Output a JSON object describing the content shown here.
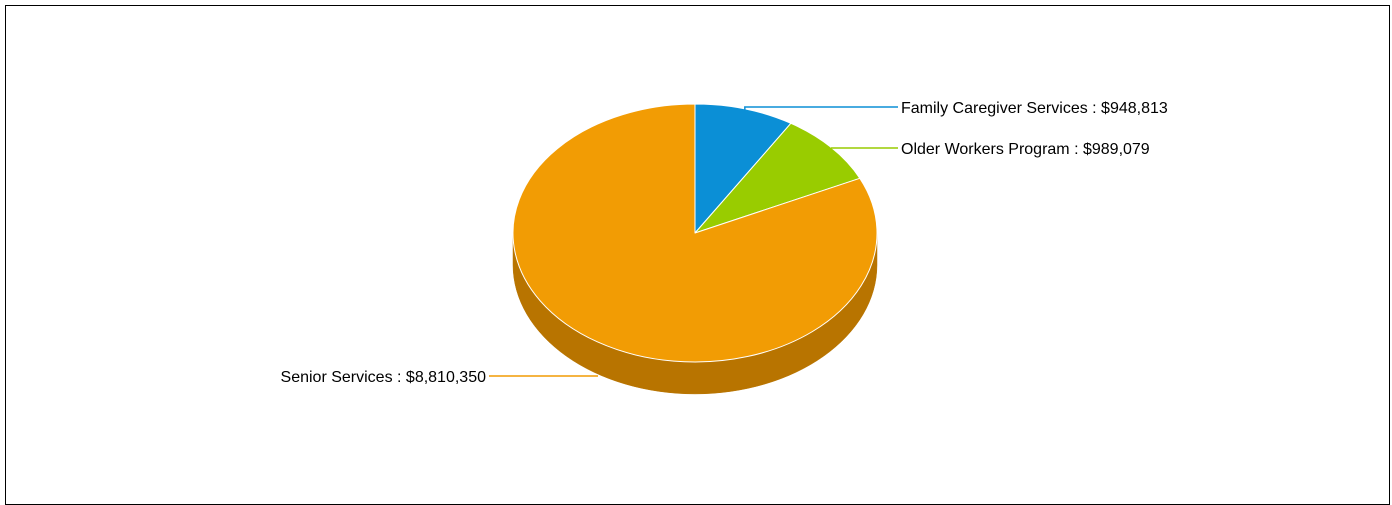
{
  "chart_data": {
    "type": "pie",
    "style": "3d",
    "slices": [
      {
        "name": "Family Caregiver Services",
        "value": 948813,
        "label": "Family Caregiver Services : $948,813",
        "color": "#0b8fd6",
        "side_color": "#066aa1"
      },
      {
        "name": "Older Workers Program",
        "value": 989079,
        "label": "Older Workers Program : $989,079",
        "color": "#99cc00",
        "side_color": "#6f9400"
      },
      {
        "name": "Senior Services",
        "value": 8810350,
        "label": "Senior Services : $8,810,350",
        "color": "#f29c04",
        "side_color": "#b87400"
      }
    ],
    "start_angle": "top (12 o'clock), clockwise",
    "label_placement": [
      "right",
      "right",
      "left"
    ],
    "legend": "none",
    "title": ""
  }
}
